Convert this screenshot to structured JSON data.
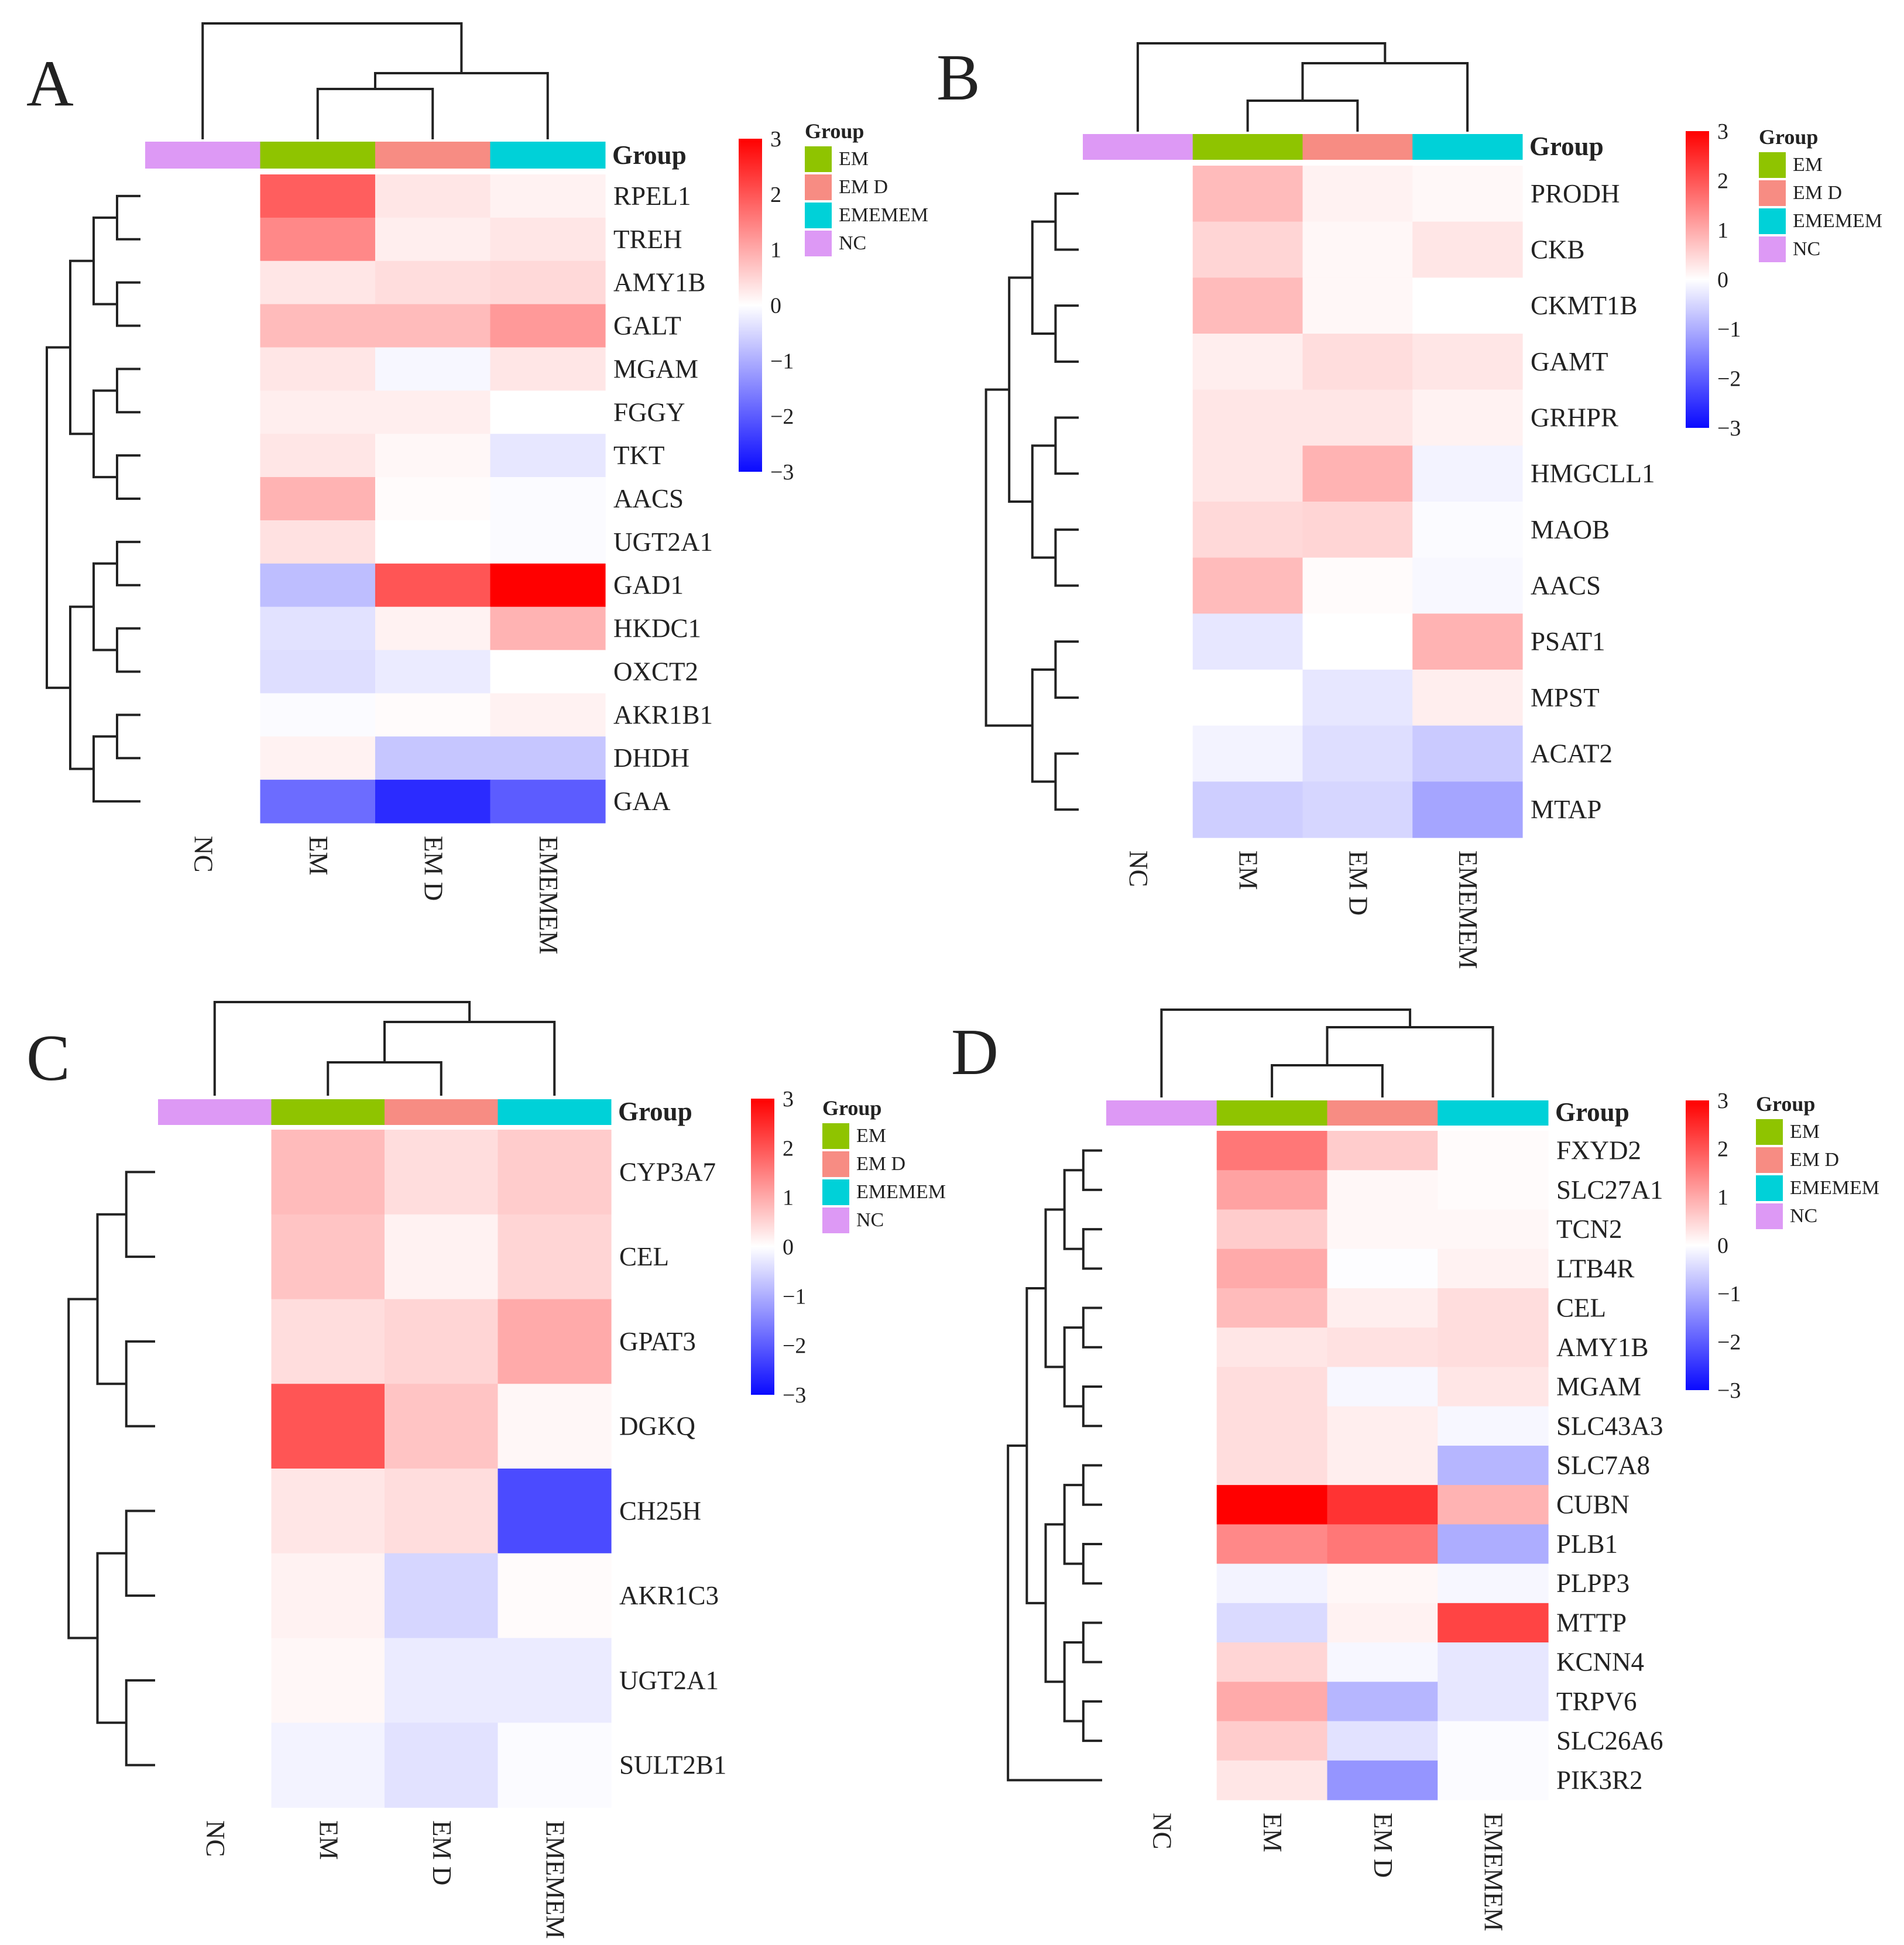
{
  "group_title": "Group",
  "groups": [
    {
      "name": "NC",
      "color": "#dd99f5"
    },
    {
      "name": "EM",
      "color": "#8fc400"
    },
    {
      "name": "EM D",
      "color": "#f78c83"
    },
    {
      "name": "EMEMEM",
      "color": "#00d1d8"
    }
  ],
  "legend_order": [
    "EM",
    "EM D",
    "EMEMEM",
    "NC"
  ],
  "color_scale": {
    "min": -3,
    "max": 3,
    "low": "#0a0aff",
    "mid": "#ffffff",
    "high": "#ff0000",
    "ticks": [
      "3",
      "2",
      "1",
      "0",
      "−1",
      "−2",
      "−3"
    ]
  },
  "chart_data": [
    {
      "panel": "A",
      "type": "heatmap",
      "columns": [
        "NC",
        "EM",
        "EM D",
        "EMEMEM"
      ],
      "rows": [
        "RPEL1",
        "TREH",
        "AMY1B",
        "GALT",
        "MGAM",
        "FGGY",
        "TKT",
        "AACS",
        "UGT2A1",
        "GAD1",
        "HKDC1",
        "OXCT2",
        "AKR1B1",
        "DHDH",
        "GAA"
      ],
      "values": [
        [
          0,
          1.9,
          0.3,
          0.15
        ],
        [
          0,
          1.4,
          0.2,
          0.3
        ],
        [
          0,
          0.3,
          0.4,
          0.45
        ],
        [
          0,
          0.8,
          0.8,
          1.2
        ],
        [
          0,
          0.3,
          -0.1,
          0.3
        ],
        [
          0,
          0.2,
          0.2,
          0.0
        ],
        [
          0,
          0.3,
          0.1,
          -0.3
        ],
        [
          0,
          0.9,
          0.05,
          -0.05
        ],
        [
          0,
          0.35,
          0.0,
          -0.05
        ],
        [
          0,
          -0.8,
          2.0,
          3.0
        ],
        [
          0,
          -0.35,
          0.15,
          0.9
        ],
        [
          0,
          -0.4,
          -0.25,
          0.0
        ],
        [
          0,
          -0.05,
          0.05,
          0.15
        ],
        [
          0,
          0.15,
          -0.7,
          -0.7
        ],
        [
          0,
          -1.8,
          -2.6,
          -2.0
        ]
      ]
    },
    {
      "panel": "B",
      "type": "heatmap",
      "columns": [
        "NC",
        "EM",
        "EM D",
        "EMEMEM"
      ],
      "rows": [
        "PRODH",
        "CKB",
        "CKMT1B",
        "GAMT",
        "GRHPR",
        "HMGCLL1",
        "MAOB",
        "AACS",
        "PSAT1",
        "MPST",
        "ACAT2",
        "MTAP"
      ],
      "values": [
        [
          0,
          0.8,
          0.15,
          0.08
        ],
        [
          0,
          0.5,
          0.1,
          0.3
        ],
        [
          0,
          0.8,
          0.1,
          0.0
        ],
        [
          0,
          0.2,
          0.4,
          0.3
        ],
        [
          0,
          0.3,
          0.3,
          0.15
        ],
        [
          0,
          0.3,
          0.9,
          -0.15
        ],
        [
          0,
          0.45,
          0.5,
          -0.05
        ],
        [
          0,
          0.8,
          0.05,
          -0.08
        ],
        [
          0,
          -0.3,
          0.0,
          0.9
        ],
        [
          0,
          0.0,
          -0.3,
          0.2
        ],
        [
          0,
          -0.15,
          -0.4,
          -0.65
        ],
        [
          0,
          -0.6,
          -0.5,
          -1.1
        ]
      ]
    },
    {
      "panel": "C",
      "type": "heatmap",
      "columns": [
        "NC",
        "EM",
        "EM D",
        "EMEMEM"
      ],
      "rows": [
        "CYP3A7",
        "CEL",
        "GPAT3",
        "DGKQ",
        "CH25H",
        "AKR1C3",
        "UGT2A1",
        "SULT2B1"
      ],
      "values": [
        [
          0,
          0.8,
          0.4,
          0.6
        ],
        [
          0,
          0.7,
          0.15,
          0.5
        ],
        [
          0,
          0.4,
          0.5,
          1.0
        ],
        [
          0,
          2.0,
          0.7,
          0.1
        ],
        [
          0,
          0.3,
          0.4,
          -2.2
        ],
        [
          0,
          0.15,
          -0.5,
          0.05
        ],
        [
          0,
          0.1,
          -0.25,
          -0.25
        ],
        [
          0,
          -0.15,
          -0.35,
          -0.05
        ]
      ]
    },
    {
      "panel": "D",
      "type": "heatmap",
      "columns": [
        "NC",
        "EM",
        "EM D",
        "EMEMEM"
      ],
      "rows": [
        "FXYD2",
        "SLC27A1",
        "TCN2",
        "LTB4R",
        "CEL",
        "AMY1B",
        "MGAM",
        "SLC43A3",
        "SLC7A8",
        "CUBN",
        "PLB1",
        "PLPP3",
        "MTTP",
        "KCNN4",
        "TRPV6",
        "SLC26A6",
        "PIK3R2"
      ],
      "values": [
        [
          0,
          1.6,
          0.6,
          0.05
        ],
        [
          0,
          1.1,
          0.1,
          0.05
        ],
        [
          0,
          0.6,
          0.1,
          0.1
        ],
        [
          0,
          1.0,
          -0.02,
          0.15
        ],
        [
          0,
          0.8,
          0.2,
          0.4
        ],
        [
          0,
          0.3,
          0.35,
          0.4
        ],
        [
          0,
          0.4,
          -0.1,
          0.3
        ],
        [
          0,
          0.4,
          0.2,
          -0.1
        ],
        [
          0,
          0.4,
          0.2,
          -0.9
        ],
        [
          0,
          3.0,
          2.4,
          0.9
        ],
        [
          0,
          1.4,
          1.6,
          -1.0
        ],
        [
          0,
          -0.15,
          0.1,
          -0.1
        ],
        [
          0,
          -0.45,
          0.15,
          2.2
        ],
        [
          0,
          0.5,
          -0.1,
          -0.3
        ],
        [
          0,
          1.0,
          -0.9,
          -0.3
        ],
        [
          0,
          0.6,
          -0.35,
          -0.05
        ],
        [
          0,
          0.3,
          -1.3,
          -0.05
        ]
      ]
    }
  ]
}
